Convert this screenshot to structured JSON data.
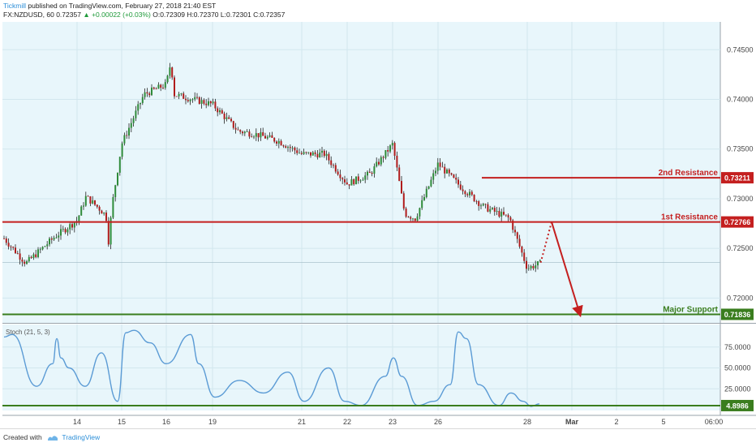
{
  "header": {
    "author": "Tickmill",
    "published": "published on TradingView.com, February 27, 2018 21:40 EST",
    "symbol_line": "FX:NZDUSD, 60",
    "last": "0.72357",
    "change": "▲ +0.00022 (+0.03%)",
    "ohlc": "O:0.72309 H:0.72370 L:0.72301 C:0.72357"
  },
  "footer": {
    "created_with": "Created with",
    "brand": "TradingView"
  },
  "chart_data": {
    "type": "candlestick",
    "title": "FX:NZDUSD, 60",
    "price_ylim": [
      0.7175,
      0.7478
    ],
    "price_ticks": [
      "0.74500",
      "0.74000",
      "0.73500",
      "0.73000",
      "0.72500",
      "0.72000"
    ],
    "x_ticks": [
      "14",
      "15",
      "16",
      "19",
      "21",
      "22",
      "23",
      "26",
      "28",
      "Mar",
      "2",
      "5",
      "06:00"
    ],
    "price_path": [
      [
        "13",
        0.726
      ],
      [
        "13.3",
        0.7235
      ],
      [
        "13.7",
        0.7262
      ],
      [
        "14",
        0.7278
      ],
      [
        "14.2",
        0.7302
      ],
      [
        "14.5",
        0.729
      ],
      [
        "14.65",
        0.7283
      ],
      [
        "14.7",
        0.7255
      ],
      [
        "14.8",
        0.7298
      ],
      [
        "15",
        0.7355
      ],
      [
        "15.5",
        0.7405
      ],
      [
        "16",
        0.7415
      ],
      [
        "16.3",
        0.7438
      ],
      [
        "16.5",
        0.7405
      ],
      [
        "19",
        0.7395
      ],
      [
        "19.6",
        0.7368
      ],
      [
        "20",
        0.7365
      ],
      [
        "20.5",
        0.7358
      ],
      [
        "21",
        0.7345
      ],
      [
        "21.5",
        0.7345
      ],
      [
        "22",
        0.7315
      ],
      [
        "22.5",
        0.7325
      ],
      [
        "23",
        0.7355
      ],
      [
        "23.4",
        0.732
      ],
      [
        "23.8",
        0.7285
      ],
      [
        "24.5",
        0.728
      ],
      [
        "26",
        0.7335
      ],
      [
        "26.5",
        0.7312
      ],
      [
        "27",
        0.7292
      ],
      [
        "27.6",
        0.728
      ],
      [
        "27.8",
        0.7255
      ],
      [
        "28",
        0.723
      ],
      [
        "28.3",
        0.7235
      ]
    ],
    "levels": [
      {
        "name": "2nd Resistance",
        "value": 0.73211,
        "label": "0.73211",
        "color": "#c41f1f"
      },
      {
        "name": "1st Resistance",
        "value": 0.72766,
        "label": "0.72766",
        "color": "#c41f1f"
      },
      {
        "name": "Major Support",
        "value": 0.71836,
        "label": "0.71836",
        "color": "#3a7d1e"
      }
    ],
    "projection": {
      "color": "#c41f1f"
    },
    "stoch": {
      "name": "Stoch (21, 5, 3)",
      "ylim": [
        0,
        100
      ],
      "ticks": [
        "75.0000",
        "50.0000",
        "25.0000"
      ],
      "current_label": "4.8986",
      "current_value": 4.8986,
      "line_color": "#5b9bd5",
      "values": [
        [
          0,
          87
        ],
        [
          10,
          90
        ],
        [
          40,
          28
        ],
        [
          60,
          55
        ],
        [
          65,
          85
        ],
        [
          70,
          62
        ],
        [
          80,
          50
        ],
        [
          100,
          28
        ],
        [
          120,
          68
        ],
        [
          140,
          10
        ],
        [
          150,
          92
        ],
        [
          160,
          95
        ],
        [
          180,
          80
        ],
        [
          200,
          55
        ],
        [
          230,
          90
        ],
        [
          240,
          55
        ],
        [
          260,
          15
        ],
        [
          290,
          35
        ],
        [
          320,
          20
        ],
        [
          350,
          45
        ],
        [
          370,
          10
        ],
        [
          400,
          50
        ],
        [
          420,
          10
        ],
        [
          440,
          5
        ],
        [
          470,
          40
        ],
        [
          480,
          62
        ],
        [
          490,
          40
        ],
        [
          510,
          5
        ],
        [
          530,
          10
        ],
        [
          550,
          30
        ],
        [
          560,
          93
        ],
        [
          570,
          85
        ],
        [
          585,
          30
        ],
        [
          610,
          5
        ],
        [
          625,
          20
        ],
        [
          640,
          10
        ],
        [
          650,
          4
        ],
        [
          660,
          7
        ]
      ]
    },
    "grid": true,
    "background": "#e8f6fb"
  }
}
